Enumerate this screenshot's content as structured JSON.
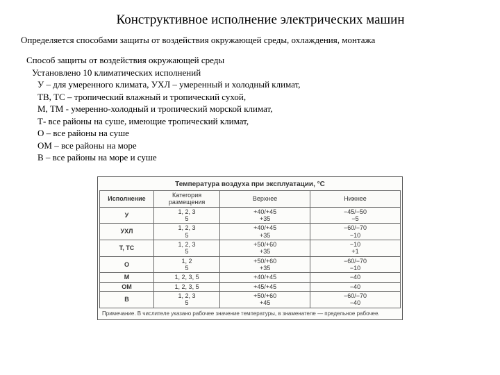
{
  "title": "Конструктивное исполнение электрических машин",
  "subtitle": "Определяется способами защиты от воздействия окружающей среды, охлаждения, монтажа",
  "body": {
    "l1": "Способ защиты от воздействия окружающей среды",
    "l2": "Установлено 10 климатических исполнений",
    "l3": "У – для умеренного климата, УХЛ – умеренный и холодный климат,",
    "l4": "ТВ, ТС – тропический влажный и тропический сухой,",
    "l5": "М, ТМ  - умеренно-холодный и тропический морской климат,",
    "l6": "Т- все районы на суше, имеющие тропический климат,",
    "l7": "О – все районы на суше",
    "l8": "ОМ – все районы на море",
    "l9": "В – все районы на море и суше"
  },
  "table": {
    "caption": "Температура воздуха при эксплуатации, °С",
    "headers": {
      "h1": "Исполнение",
      "h2": "Категория размещения",
      "h3": "Верхнее",
      "h4": "Нижнее"
    },
    "rows": [
      {
        "c1": "У",
        "c2": "1, 2, 3\n5",
        "c3": "+40/+45\n+35",
        "c4": "−45/−50\n−5"
      },
      {
        "c1": "УХЛ",
        "c2": "1, 2, 3\n5",
        "c3": "+40/+45\n+35",
        "c4": "−60/−70\n−10"
      },
      {
        "c1": "Т, ТС",
        "c2": "1, 2, 3\n5",
        "c3": "+50/+60\n+35",
        "c4": "−10\n+1"
      },
      {
        "c1": "О",
        "c2": "1, 2\n5",
        "c3": "+50/+60\n+35",
        "c4": "−60/−70\n−10"
      },
      {
        "c1": "М",
        "c2": "1, 2, 3, 5",
        "c3": "+40/+45",
        "c4": "−40"
      },
      {
        "c1": "ОМ",
        "c2": "1, 2, 3, 5",
        "c3": "+45/+45",
        "c4": "−40"
      },
      {
        "c1": "В",
        "c2": "1, 2, 3\n5",
        "c3": "+50/+60\n+45",
        "c4": "−60/−70\n−40"
      }
    ],
    "note": "Примечание. В числителе указано рабочее значение температуры, в знаменателе — предельное рабочее."
  }
}
